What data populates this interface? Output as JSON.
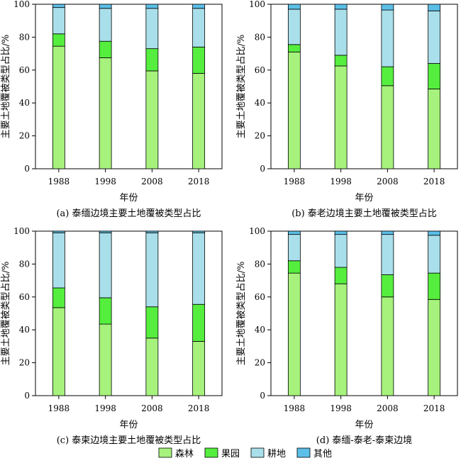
{
  "colors": {
    "森林": "#a6f27c",
    "果园": "#55ee3e",
    "耕地": "#a9dfea",
    "其他": "#5bbfe8"
  },
  "legend": [
    "森林",
    "果园",
    "耕地",
    "其他"
  ],
  "chart_data": [
    {
      "type": "bar",
      "stacked": true,
      "caption": "(a) 泰缅边境主要土地覆被类型占比",
      "xlabel": "年份",
      "ylabel": "主要土地覆被类型占比/%",
      "ylim": [
        0,
        100
      ],
      "yticks": [
        0,
        20,
        40,
        60,
        80,
        100
      ],
      "categories": [
        "1988",
        "1998",
        "2008",
        "2018"
      ],
      "series": [
        {
          "name": "森林",
          "values": [
            74.5,
            67.5,
            59.5,
            58.0
          ]
        },
        {
          "name": "果园",
          "values": [
            7.5,
            10.0,
            13.5,
            16.0
          ]
        },
        {
          "name": "耕地",
          "values": [
            16.0,
            20.0,
            24.5,
            23.5
          ]
        },
        {
          "name": "其他",
          "values": [
            2.0,
            2.5,
            2.5,
            2.5
          ]
        }
      ]
    },
    {
      "type": "bar",
      "stacked": true,
      "caption": "(b) 泰老边境主要土地覆被类型占比",
      "xlabel": "年份",
      "ylabel": "主要土地覆被类型占比/%",
      "ylim": [
        0,
        100
      ],
      "yticks": [
        0,
        20,
        40,
        60,
        80,
        100
      ],
      "categories": [
        "1988",
        "1998",
        "2008",
        "2018"
      ],
      "series": [
        {
          "name": "森林",
          "values": [
            71.0,
            62.5,
            50.5,
            48.5
          ]
        },
        {
          "name": "果园",
          "values": [
            4.5,
            6.5,
            11.5,
            15.5
          ]
        },
        {
          "name": "耕地",
          "values": [
            21.5,
            28.0,
            34.5,
            32.0
          ]
        },
        {
          "name": "其他",
          "values": [
            3.0,
            3.0,
            3.5,
            4.0
          ]
        }
      ]
    },
    {
      "type": "bar",
      "stacked": true,
      "caption": "(c) 泰柬边境主要土地覆被类型占比",
      "xlabel": "年份",
      "ylabel": "主要土地覆被类型占比/%",
      "ylim": [
        0,
        100
      ],
      "yticks": [
        0,
        20,
        40,
        60,
        80,
        100
      ],
      "categories": [
        "1988",
        "1998",
        "2008",
        "2018"
      ],
      "series": [
        {
          "name": "森林",
          "values": [
            53.5,
            43.5,
            35.0,
            33.0
          ]
        },
        {
          "name": "果园",
          "values": [
            12.0,
            16.0,
            19.0,
            22.5
          ]
        },
        {
          "name": "耕地",
          "values": [
            33.5,
            39.5,
            45.0,
            43.5
          ]
        },
        {
          "name": "其他",
          "values": [
            1.0,
            1.0,
            1.0,
            1.0
          ]
        }
      ]
    },
    {
      "type": "bar",
      "stacked": true,
      "caption": "(d) 泰缅-泰老-泰柬边境",
      "xlabel": "年份",
      "ylabel": "主要土地覆被类型占比/%",
      "ylim": [
        0,
        100
      ],
      "yticks": [
        0,
        20,
        40,
        60,
        80,
        100
      ],
      "categories": [
        "1988",
        "1998",
        "2008",
        "2018"
      ],
      "series": [
        {
          "name": "森林",
          "values": [
            74.5,
            68.0,
            60.0,
            58.5
          ]
        },
        {
          "name": "果园",
          "values": [
            7.5,
            10.0,
            13.5,
            16.0
          ]
        },
        {
          "name": "耕地",
          "values": [
            16.0,
            20.0,
            24.5,
            23.0
          ]
        },
        {
          "name": "其他",
          "values": [
            2.0,
            2.0,
            2.0,
            2.5
          ]
        }
      ]
    }
  ]
}
